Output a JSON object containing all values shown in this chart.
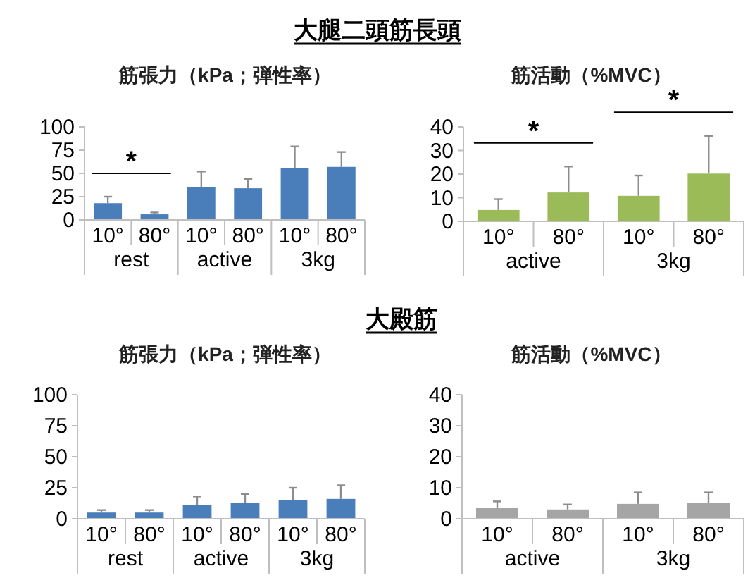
{
  "chart_data": [
    {
      "type": "bar",
      "title": "大腿二頭筋長頭",
      "subtitle": "筋張力（kPa；弾性率）",
      "categories": [
        "10°",
        "80°",
        "10°",
        "80°",
        "10°",
        "80°"
      ],
      "values": [
        18,
        6,
        35,
        34,
        56,
        57
      ],
      "errors": [
        7,
        2,
        17,
        10,
        23,
        16
      ],
      "color": "#4a7ebb",
      "ylim": [
        0,
        100
      ],
      "yticks": [
        0,
        25,
        50,
        75,
        100
      ],
      "annotations": [
        "rest",
        "active",
        "3kg",
        "*"
      ]
    },
    {
      "type": "bar",
      "subtitle": "筋活動（%MVC）",
      "categories": [
        "10°",
        "80°",
        "10°",
        "80°"
      ],
      "values": [
        4.8,
        12.2,
        10.8,
        20.2
      ],
      "errors": [
        4.6,
        11,
        8.6,
        16
      ],
      "color": "#9bbb59",
      "ylim": [
        0,
        40
      ],
      "yticks": [
        0,
        10,
        20,
        30,
        40
      ],
      "annotations": [
        "active",
        "3kg",
        "*",
        "*"
      ]
    },
    {
      "type": "bar",
      "title": "大殿筋",
      "subtitle": "筋張力（kPa；弾性率）",
      "categories": [
        "10°",
        "80°",
        "10°",
        "80°",
        "10°",
        "80°"
      ],
      "values": [
        5,
        5,
        11,
        13,
        15,
        16
      ],
      "errors": [
        2,
        2,
        7,
        7,
        10,
        11
      ],
      "color": "#4a7ebb",
      "ylim": [
        0,
        100
      ],
      "yticks": [
        0,
        25,
        50,
        75,
        100
      ],
      "annotations": [
        "rest",
        "active",
        "3kg"
      ]
    },
    {
      "type": "bar",
      "subtitle": "筋活動（%MVC）",
      "categories": [
        "10°",
        "80°",
        "10°",
        "80°"
      ],
      "values": [
        3.5,
        3,
        4.8,
        5.2
      ],
      "errors": [
        2.1,
        1.6,
        3.7,
        3.3
      ],
      "color": "#a5a5a5",
      "ylim": [
        0,
        40
      ],
      "yticks": [
        0,
        10,
        20,
        30,
        40
      ],
      "annotations": [
        "active",
        "3kg"
      ]
    }
  ]
}
